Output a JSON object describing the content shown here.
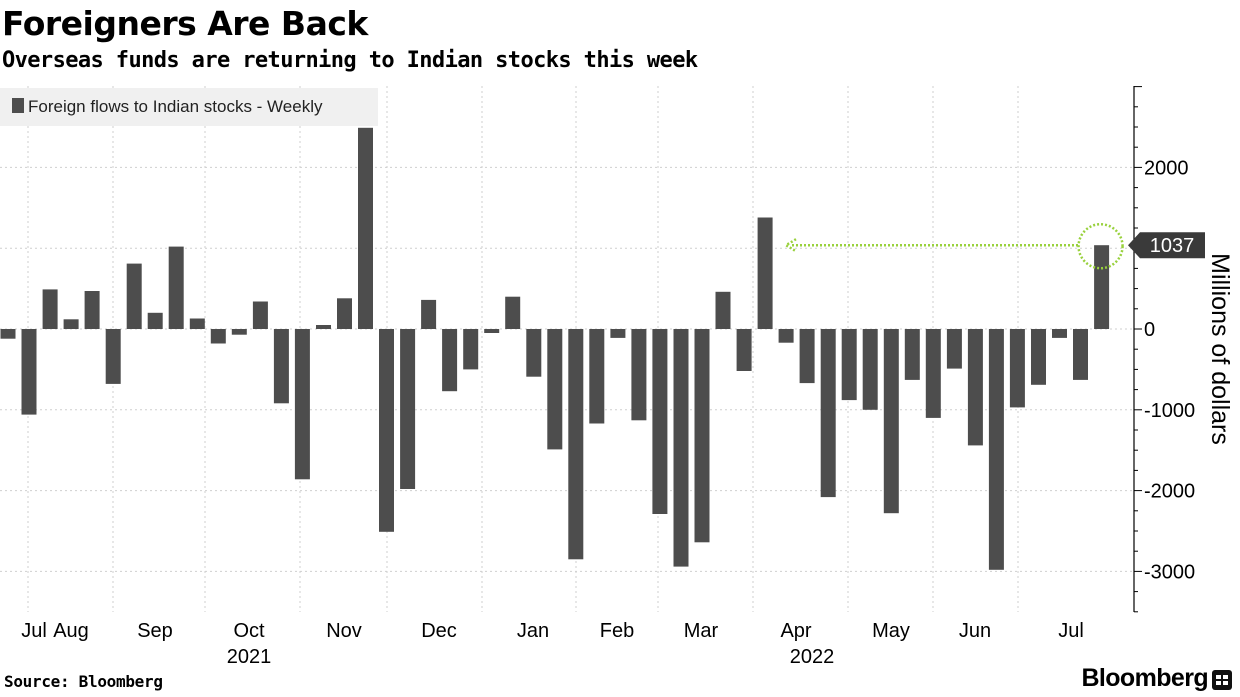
{
  "header": {
    "title": "Foreigners Are Back",
    "subtitle": "Overseas funds are returning to Indian stocks this week"
  },
  "footer": {
    "source": "Source: Bloomberg",
    "brand": "Bloomberg",
    "brand_icon": "bloomberg-terminal-icon"
  },
  "chart_data": {
    "type": "bar",
    "legend": {
      "label": "Foreign flows to Indian stocks - Weekly",
      "placement": "top-left"
    },
    "ylabel": "Millions of dollars",
    "ylim": [
      -3500,
      3000
    ],
    "yticks": [
      -3000,
      -2000,
      -1000,
      0,
      1000,
      2000
    ],
    "ytick_labels": [
      "-3000",
      "-2000",
      "-1000",
      "0",
      "1000",
      "2000"
    ],
    "grid": true,
    "y_axis_side": "right",
    "bar_color": "#4d4d4d",
    "highlight_color": "#99d13d",
    "callout": {
      "label": "1037",
      "value": 1037
    },
    "annotation": "dotted arrow from the latest week back to the previous comparable weekly inflow, with a circle around the latest bar",
    "month_labels": [
      "Jul",
      "Aug",
      "Sep",
      "Oct",
      "Nov",
      "Dec",
      "Jan",
      "Feb",
      "Mar",
      "Apr",
      "May",
      "Jun",
      "Jul"
    ],
    "year_labels": [
      "2021",
      "2022"
    ],
    "values": [
      -120,
      -1060,
      490,
      120,
      470,
      -680,
      810,
      200,
      1020,
      130,
      -180,
      -70,
      340,
      -920,
      -1860,
      50,
      380,
      2490,
      -2510,
      -1980,
      360,
      -770,
      -500,
      -50,
      400,
      -590,
      -1490,
      -2850,
      -1170,
      -110,
      -1130,
      -2290,
      -2940,
      -2640,
      460,
      -520,
      1380,
      -170,
      -670,
      -2080,
      -880,
      -1000,
      -2280,
      -630,
      -1100,
      -490,
      -1440,
      -2980,
      -970,
      -690,
      -110,
      -630,
      1037
    ]
  }
}
